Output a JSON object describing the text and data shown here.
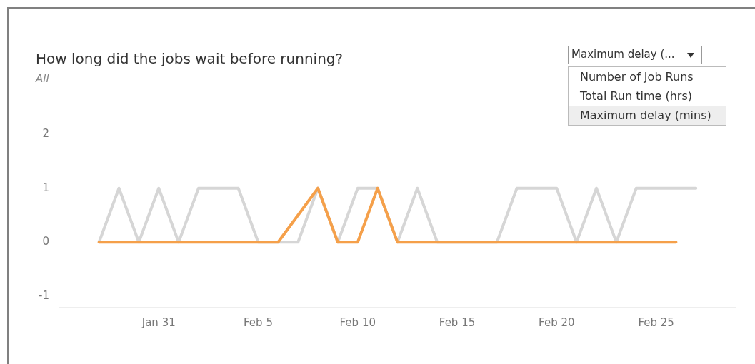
{
  "chart_data": {
    "type": "line",
    "title": "How long did the jobs wait before running?",
    "subtitle": "All",
    "annotations": [
      "Maximum delay (...",
      "Number of Job Runs",
      "Total Run time (hrs)",
      "Maximum delay (mins)"
    ],
    "series": [
      {
        "color": "#f5a04a",
        "x": [
          "--01-28",
          "--01-29",
          "--01-30",
          "--01-31",
          "--02-01",
          "--02-02",
          "--02-03",
          "--02-04",
          "--02-05",
          "--02-06",
          "--02-08",
          "--02-09",
          "--02-10",
          "--02-11",
          "--02-12",
          "--02-13",
          "--02-14",
          "--02-15",
          "--02-16",
          "--02-17",
          "--02-18",
          "--02-19",
          "--02-20",
          "--02-21",
          "--02-22",
          "--02-23",
          "--02-24",
          "--02-25",
          "--02-26"
        ],
        "values": [
          0,
          0,
          0,
          0,
          0,
          0,
          0,
          0,
          0,
          0,
          1,
          0,
          0,
          1,
          0,
          0,
          0,
          0,
          0,
          0,
          0,
          0,
          0,
          0,
          0,
          0,
          0,
          0,
          0
        ]
      },
      {
        "color": "#d6d6d6",
        "x": [
          "--01-28",
          "--01-29",
          "--01-30",
          "--01-31",
          "--02-01",
          "--02-02",
          "--02-03",
          "--02-04",
          "--02-05",
          "--02-06",
          "--02-07",
          "--02-08",
          "--02-09",
          "--02-10",
          "--02-11",
          "--02-12",
          "--02-13",
          "--02-14",
          "--02-15",
          "--02-16",
          "--02-17",
          "--02-18",
          "--02-19",
          "--02-20",
          "--02-21",
          "--02-22",
          "--02-23",
          "--02-24",
          "--02-25",
          "--02-26",
          "--02-27"
        ],
        "values": [
          0,
          1,
          0,
          1,
          0,
          1,
          1,
          1,
          0,
          0,
          0,
          1,
          0,
          1,
          1,
          0,
          1,
          0,
          0,
          0,
          0,
          1,
          1,
          1,
          0,
          1,
          0,
          1,
          1,
          1,
          1
        ]
      }
    ],
    "xlim": [
      "--01-26",
      "--02-29"
    ],
    "xticks": [
      {
        "value": "--01-31",
        "label": "Jan 31"
      },
      {
        "value": "--02-05",
        "label": "Feb 5"
      },
      {
        "value": "--02-10",
        "label": "Feb 10"
      },
      {
        "value": "--02-15",
        "label": "Feb 15"
      },
      {
        "value": "--02-20",
        "label": "Feb 20"
      },
      {
        "value": "--02-25",
        "label": "Feb 25"
      }
    ],
    "ylim": [
      -1.2,
      2.2
    ],
    "yticks": [
      -1,
      0,
      1,
      2
    ],
    "grid": false,
    "legend": false,
    "marker": "none",
    "line_style": "solid"
  }
}
